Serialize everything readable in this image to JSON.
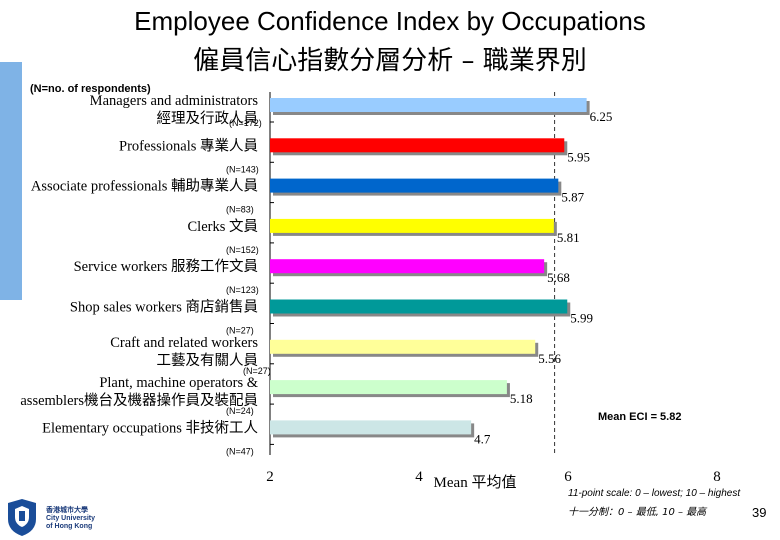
{
  "title_en": "Employee Confidence Index by Occupations",
  "title_zh": "僱員信心指數分層分析 – 職業界別",
  "n_note": "(N=no. of respondents)",
  "mean_label": "Mean ECI = 5.82",
  "scale_note_en": "11-point scale: 0 – lowest; 10 – highest",
  "scale_note_zh": "十一分制：0 – 最低, 10 – 最高",
  "page_number": "39",
  "logo_text": [
    "香港城市大學",
    "City University",
    "of Hong Kong"
  ],
  "colors": {
    "accent": "#7fb3e6",
    "mean_line": "#333333"
  },
  "chart_data": {
    "type": "bar",
    "orientation": "horizontal",
    "xlabel": "Mean 平均值",
    "xlim": [
      2,
      8
    ],
    "xticks": [
      "2",
      "4",
      "6",
      "8"
    ],
    "mean": 5.82,
    "categories": [
      {
        "lines": [
          "Managers and administrators",
          "經理及行政人員"
        ],
        "n": "(N=172)",
        "value": 6.25,
        "value_label": "6.25",
        "color": "#99ccff"
      },
      {
        "lines": [
          "Professionals 專業人員"
        ],
        "n": "(N=143)",
        "value": 5.95,
        "value_label": "5.95",
        "color": "#ff0000"
      },
      {
        "lines": [
          "Associate professionals 輔助專業人員"
        ],
        "n": "(N=83)",
        "value": 5.87,
        "value_label": "5.87",
        "color": "#0066cc"
      },
      {
        "lines": [
          "Clerks 文員"
        ],
        "n": "(N=152)",
        "value": 5.81,
        "value_label": "5.81",
        "color": "#ffff00"
      },
      {
        "lines": [
          "Service workers 服務工作文員"
        ],
        "n": "(N=123)",
        "value": 5.68,
        "value_label": "5.68",
        "color": "#ff00ff"
      },
      {
        "lines": [
          "Shop sales workers 商店銷售員"
        ],
        "n": "(N=27)",
        "value": 5.99,
        "value_label": "5.99",
        "color": "#009999"
      },
      {
        "lines": [
          "Craft and related workers",
          "工藝及有關人員"
        ],
        "n": "(N=27)",
        "value": 5.56,
        "value_label": "5.56",
        "color": "#ffff99"
      },
      {
        "lines": [
          "Plant, machine operators &",
          "assemblers機台及機器操作員及裝配員"
        ],
        "n": "(N=24)",
        "value": 5.18,
        "value_label": "5.18",
        "color": "#ccffcc"
      },
      {
        "lines": [
          "Elementary occupations 非技術工人"
        ],
        "n": "(N=47)",
        "value": 4.7,
        "value_label": "4.7",
        "color": "#cce6e6"
      }
    ]
  }
}
